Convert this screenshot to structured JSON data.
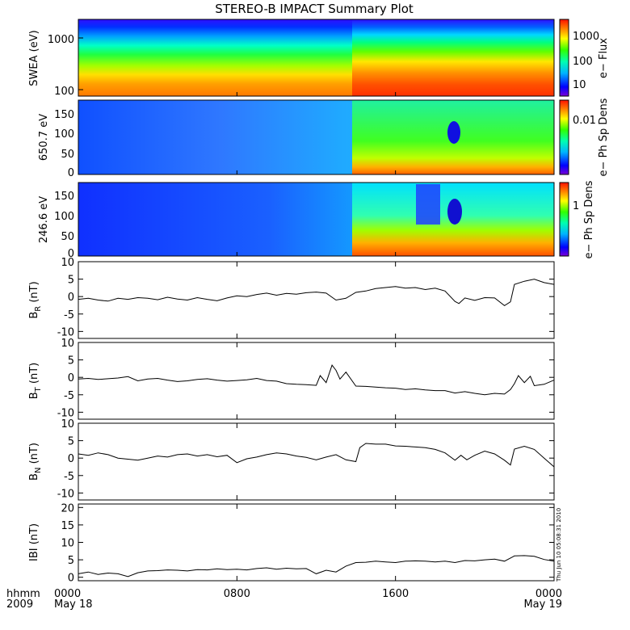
{
  "title": "STEREO-B IMPACT Summary Plot",
  "timestamp": "Thu Jun 10 05:08:31 2010",
  "time_axis": {
    "label_top": "hhmm",
    "label_bottom": "2009",
    "ticks": [
      {
        "hhmm": "0000",
        "date": "May 18",
        "hours": 0
      },
      {
        "hhmm": "0800",
        "date": "",
        "hours": 8
      },
      {
        "hhmm": "1600",
        "date": "",
        "hours": 16
      },
      {
        "hhmm": "0000",
        "date": "May 19",
        "hours": 24
      }
    ]
  },
  "colorbars": [
    {
      "title": "e− Flux",
      "ticks": [
        "1000",
        "100",
        "10"
      ]
    },
    {
      "title": "e− Ph Sp Dens",
      "ticks": [
        "0.01"
      ]
    },
    {
      "title": "e− Ph Sp Dens",
      "ticks": [
        "1"
      ]
    }
  ],
  "chart_data": [
    {
      "type": "heatmap",
      "ylabel": "SWEA (eV)",
      "yscale": "log",
      "ytick_labels": [
        "1000",
        "100"
      ],
      "colorbar_label": "e− Flux",
      "colorbar_ticks": [
        "1000",
        "100",
        "10"
      ],
      "grid": false,
      "description_values": {
        "event_time_hours": 14.0
      }
    },
    {
      "type": "heatmap",
      "ylabel": "650.7 eV",
      "ytick_labels": [
        "150",
        "100",
        "50",
        "0"
      ],
      "ylim": [
        0,
        180
      ],
      "colorbar_label": "e− Ph Sp Dens",
      "colorbar_ticks": [
        "0.01"
      ],
      "grid": false
    },
    {
      "type": "heatmap",
      "ylabel": "246.6 eV",
      "ytick_labels": [
        "150",
        "100",
        "50",
        "0"
      ],
      "ylim": [
        0,
        180
      ],
      "colorbar_label": "e− Ph Sp Dens",
      "colorbar_ticks": [
        "1"
      ],
      "grid": false
    },
    {
      "type": "line",
      "ylabel": "B",
      "ylabel_sub": "R",
      "ylabel_unit": "(nT)",
      "ylim": [
        -12,
        10
      ],
      "ytick_labels": [
        "10",
        "5",
        "0",
        "-5",
        "-10"
      ],
      "x": [
        0,
        0.5,
        1,
        1.5,
        2,
        2.5,
        3,
        3.5,
        4,
        4.5,
        5,
        5.5,
        6,
        6.5,
        7,
        7.5,
        8,
        8.5,
        9,
        9.5,
        10,
        10.5,
        11,
        11.5,
        12,
        12.5,
        13,
        13.5,
        14,
        14.5,
        15,
        15.5,
        16,
        16.5,
        17,
        17.5,
        18,
        18.5,
        19,
        19.2,
        19.5,
        20,
        20.5,
        21,
        21.5,
        21.8,
        22,
        22.5,
        23,
        23.5,
        24
      ],
      "y": [
        -0.8,
        -0.5,
        -1.0,
        -1.3,
        -0.5,
        -0.8,
        -0.3,
        -0.5,
        -0.9,
        -0.2,
        -0.7,
        -1.0,
        -0.3,
        -0.8,
        -1.2,
        -0.4,
        0.2,
        0.0,
        0.6,
        1.0,
        0.4,
        0.9,
        0.7,
        1.1,
        1.3,
        1.0,
        -1.0,
        -0.5,
        1.2,
        1.6,
        2.3,
        2.6,
        2.9,
        2.4,
        2.6,
        2.0,
        2.4,
        1.6,
        -1.4,
        -2.0,
        -0.4,
        -1.1,
        -0.3,
        -0.4,
        -2.6,
        -1.5,
        3.5,
        4.4,
        5.0,
        4.0,
        3.5
      ]
    },
    {
      "type": "line",
      "ylabel": "B",
      "ylabel_sub": "T",
      "ylabel_unit": "(nT)",
      "ylim": [
        -12,
        10
      ],
      "ytick_labels": [
        "10",
        "5",
        "0",
        "-5",
        "-10"
      ],
      "x": [
        0,
        0.5,
        1,
        1.5,
        2,
        2.5,
        3,
        3.5,
        4,
        4.5,
        5,
        5.5,
        6,
        6.5,
        7,
        7.5,
        8,
        8.5,
        9,
        9.5,
        10,
        10.5,
        11,
        11.5,
        12,
        12.2,
        12.5,
        12.8,
        13,
        13.2,
        13.5,
        14,
        14.5,
        15,
        15.5,
        16,
        16.5,
        17,
        17.5,
        18,
        18.5,
        19,
        19.5,
        20,
        20.5,
        21,
        21.5,
        21.8,
        22,
        22.2,
        22.5,
        22.8,
        23,
        23.5,
        24
      ],
      "y": [
        -0.5,
        -0.3,
        -0.6,
        -0.4,
        -0.2,
        0.2,
        -1.0,
        -0.5,
        -0.3,
        -0.8,
        -1.2,
        -1.0,
        -0.6,
        -0.4,
        -0.8,
        -1.1,
        -0.9,
        -0.7,
        -0.3,
        -0.9,
        -1.1,
        -1.8,
        -2.0,
        -2.1,
        -2.3,
        0.5,
        -1.5,
        3.5,
        2.0,
        -0.5,
        1.5,
        -2.5,
        -2.6,
        -2.8,
        -3.0,
        -3.1,
        -3.5,
        -3.3,
        -3.6,
        -3.8,
        -3.8,
        -4.5,
        -4.1,
        -4.6,
        -5.0,
        -4.6,
        -4.8,
        -3.5,
        -1.8,
        0.5,
        -1.5,
        0.3,
        -2.4,
        -2.0,
        -0.8
      ]
    },
    {
      "type": "line",
      "ylabel": "B",
      "ylabel_sub": "N",
      "ylabel_unit": "(nT)",
      "ylim": [
        -12,
        10
      ],
      "ytick_labels": [
        "10",
        "5",
        "0",
        "-5",
        "-10"
      ],
      "x": [
        0,
        0.5,
        1,
        1.5,
        2,
        2.5,
        3,
        3.5,
        4,
        4.5,
        5,
        5.5,
        6,
        6.5,
        7,
        7.5,
        8,
        8.5,
        9,
        9.5,
        10,
        10.5,
        11,
        11.5,
        12,
        12.5,
        13,
        13.5,
        14,
        14.2,
        14.5,
        15,
        15.5,
        16,
        16.5,
        17,
        17.5,
        18,
        18.5,
        19,
        19.3,
        19.6,
        20,
        20.5,
        21,
        21.5,
        21.8,
        22,
        22.5,
        23,
        23.5,
        24
      ],
      "y": [
        1.2,
        0.8,
        1.5,
        1.0,
        0.0,
        -0.3,
        -0.6,
        0.0,
        0.6,
        0.3,
        1.0,
        1.2,
        0.6,
        1.0,
        0.4,
        0.8,
        -1.3,
        -0.2,
        0.3,
        1.0,
        1.5,
        1.2,
        0.6,
        0.2,
        -0.5,
        0.3,
        1.0,
        -0.5,
        -1.0,
        3.0,
        4.2,
        4.0,
        4.0,
        3.5,
        3.4,
        3.2,
        3.0,
        2.5,
        1.5,
        -0.6,
        0.8,
        -0.5,
        0.8,
        2.0,
        1.2,
        -0.6,
        -2.0,
        2.6,
        3.4,
        2.5,
        0.0,
        -2.5
      ]
    },
    {
      "type": "line",
      "ylabel": "|B| (nT)",
      "ylabel_display": "IBI (nT)",
      "ylim": [
        -1,
        21
      ],
      "ytick_labels": [
        "20",
        "15",
        "10",
        "5",
        "0"
      ],
      "x": [
        0,
        0.5,
        1,
        1.5,
        2,
        2.5,
        3,
        3.5,
        4,
        4.5,
        5,
        5.5,
        6,
        6.5,
        7,
        7.5,
        8,
        8.5,
        9,
        9.5,
        10,
        10.5,
        11,
        11.5,
        12,
        12.5,
        13,
        13.5,
        14,
        14.5,
        15,
        15.5,
        16,
        16.5,
        17,
        17.5,
        18,
        18.5,
        19,
        19.5,
        20,
        20.5,
        21,
        21.5,
        22,
        22.5,
        23,
        23.5,
        24
      ],
      "y": [
        1.0,
        1.5,
        0.8,
        1.2,
        1.0,
        0.2,
        1.3,
        1.8,
        1.9,
        2.1,
        2.0,
        1.8,
        2.2,
        2.1,
        2.4,
        2.2,
        2.3,
        2.1,
        2.5,
        2.7,
        2.3,
        2.6,
        2.4,
        2.5,
        1.0,
        2.0,
        1.5,
        3.2,
        4.2,
        4.3,
        4.6,
        4.4,
        4.2,
        4.6,
        4.7,
        4.6,
        4.4,
        4.6,
        4.2,
        4.8,
        4.7,
        5.0,
        5.2,
        4.6,
        6.1,
        6.2,
        6.0,
        5.1,
        4.6
      ]
    }
  ]
}
